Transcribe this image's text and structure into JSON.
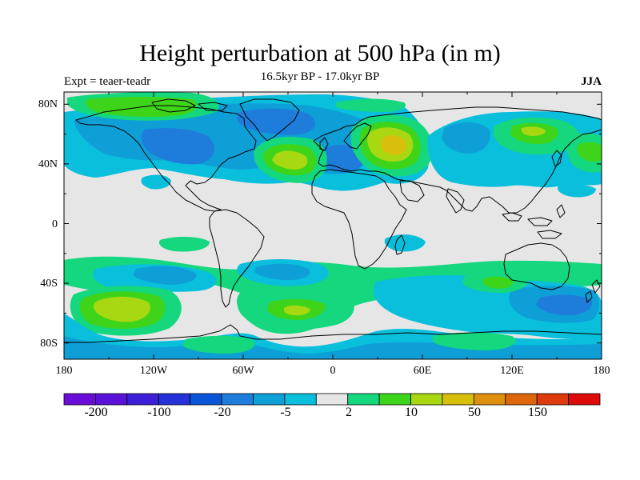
{
  "title": "Height perturbation at 500 hPa (in m)",
  "subtitle": "16.5kyr BP - 17.0kyr BP",
  "left_label": "Expt = teaer-teadr",
  "right_label": "JJA",
  "lat_labels": [
    "80N",
    "40N",
    "0",
    "40S",
    "80S"
  ],
  "lon_labels": [
    "180",
    "120W",
    "60W",
    "0",
    "60E",
    "120E",
    "180"
  ],
  "colorbar": {
    "labels": [
      "-200",
      "-100",
      "-20",
      "-5",
      "2",
      "10",
      "50",
      "150"
    ],
    "colors": [
      "#6a0dd8",
      "#5b12d8",
      "#3d1fd8",
      "#2432d8",
      "#0b55d8",
      "#1e7ddb",
      "#0d9fd6",
      "#09bfdc",
      "#e6e6e6",
      "#14d77e",
      "#3ed41a",
      "#a8d812",
      "#d8bf0b",
      "#dd8f0d",
      "#dd660d",
      "#dd3a0d",
      "#dd0a0a"
    ]
  },
  "colors": {
    "background": "#e6e6e6",
    "coast": "#000000",
    "neg_light": "#09bfdc",
    "neg_mid": "#0d9fd6",
    "neg_dark": "#1e7ddb",
    "pos_light": "#14d77e",
    "pos_mid": "#3ed41a",
    "pos_strong": "#a8d812",
    "pos_peak": "#d8bf0b"
  }
}
